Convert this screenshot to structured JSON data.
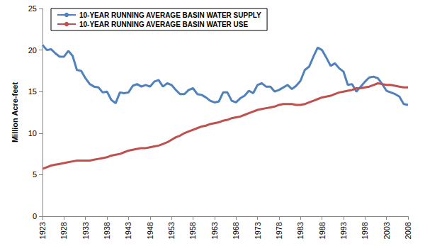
{
  "chart_data": {
    "type": "line",
    "y_label": "Million Acre-feet",
    "x": [
      1923,
      1924,
      1925,
      1926,
      1927,
      1928,
      1929,
      1930,
      1931,
      1932,
      1933,
      1934,
      1935,
      1936,
      1937,
      1938,
      1939,
      1940,
      1941,
      1942,
      1943,
      1944,
      1945,
      1946,
      1947,
      1948,
      1949,
      1950,
      1951,
      1952,
      1953,
      1954,
      1955,
      1956,
      1957,
      1958,
      1959,
      1960,
      1961,
      1962,
      1963,
      1964,
      1965,
      1966,
      1967,
      1968,
      1969,
      1970,
      1971,
      1972,
      1973,
      1974,
      1975,
      1976,
      1977,
      1978,
      1979,
      1980,
      1981,
      1982,
      1983,
      1984,
      1985,
      1986,
      1987,
      1988,
      1989,
      1990,
      1991,
      1992,
      1993,
      1994,
      1995,
      1996,
      1997,
      1998,
      1999,
      2000,
      2001,
      2002,
      2003,
      2004,
      2005,
      2006,
      2007,
      2008
    ],
    "series": [
      {
        "name": "10-YEAR RUNNING AVERAGE BASIN WATER SUPPLY",
        "color": "#4f81bd",
        "values": [
          20.6,
          20.0,
          20.1,
          19.6,
          19.2,
          19.2,
          19.9,
          19.3,
          17.6,
          17.5,
          16.6,
          15.9,
          15.6,
          15.5,
          14.9,
          15.0,
          14.0,
          13.6,
          14.9,
          14.8,
          14.9,
          15.7,
          15.9,
          15.6,
          15.8,
          15.6,
          16.2,
          16.4,
          15.6,
          16.0,
          15.8,
          15.2,
          14.7,
          14.7,
          15.2,
          15.4,
          14.7,
          14.6,
          14.3,
          13.9,
          13.7,
          13.8,
          14.9,
          14.9,
          13.9,
          13.7,
          14.2,
          14.5,
          15.1,
          14.8,
          15.8,
          16.0,
          15.6,
          15.6,
          15.0,
          15.2,
          15.5,
          15.8,
          15.3,
          15.7,
          16.3,
          17.6,
          18.0,
          19.2,
          20.3,
          20.0,
          19.1,
          18.1,
          18.4,
          17.8,
          17.4,
          15.8,
          15.9,
          15.0,
          15.6,
          16.2,
          16.7,
          16.8,
          16.6,
          15.9,
          15.1,
          14.9,
          14.7,
          14.4,
          13.5,
          13.4
        ]
      },
      {
        "name": "10-YEAR RUNNING AVERAGE BASIN WATER USE",
        "color": "#c0504d",
        "values": [
          5.7,
          5.9,
          6.1,
          6.2,
          6.3,
          6.4,
          6.5,
          6.6,
          6.7,
          6.7,
          6.7,
          6.7,
          6.8,
          6.9,
          7.0,
          7.1,
          7.3,
          7.4,
          7.5,
          7.7,
          7.9,
          8.0,
          8.1,
          8.2,
          8.2,
          8.3,
          8.4,
          8.5,
          8.7,
          8.9,
          9.2,
          9.5,
          9.7,
          10.0,
          10.2,
          10.4,
          10.6,
          10.8,
          10.9,
          11.1,
          11.2,
          11.3,
          11.5,
          11.6,
          11.8,
          11.9,
          12.0,
          12.2,
          12.4,
          12.6,
          12.8,
          12.9,
          13.0,
          13.1,
          13.2,
          13.4,
          13.5,
          13.5,
          13.5,
          13.4,
          13.4,
          13.5,
          13.7,
          13.9,
          14.1,
          14.3,
          14.4,
          14.5,
          14.7,
          14.9,
          15.0,
          15.1,
          15.2,
          15.4,
          15.4,
          15.5,
          15.6,
          15.8,
          16.0,
          15.9,
          15.8,
          15.8,
          15.7,
          15.6,
          15.5,
          15.5
        ]
      }
    ],
    "xlim": [
      1923,
      2008
    ],
    "xticks": [
      1923,
      1928,
      1933,
      1938,
      1943,
      1948,
      1953,
      1958,
      1963,
      1968,
      1973,
      1978,
      1983,
      1988,
      1993,
      1998,
      2003,
      2008
    ],
    "ylim": [
      0,
      25
    ],
    "yticks": [
      0,
      5,
      10,
      15,
      20,
      25
    ],
    "grid": false,
    "legend": "upper left",
    "marker": "none",
    "line_style": "solid"
  }
}
